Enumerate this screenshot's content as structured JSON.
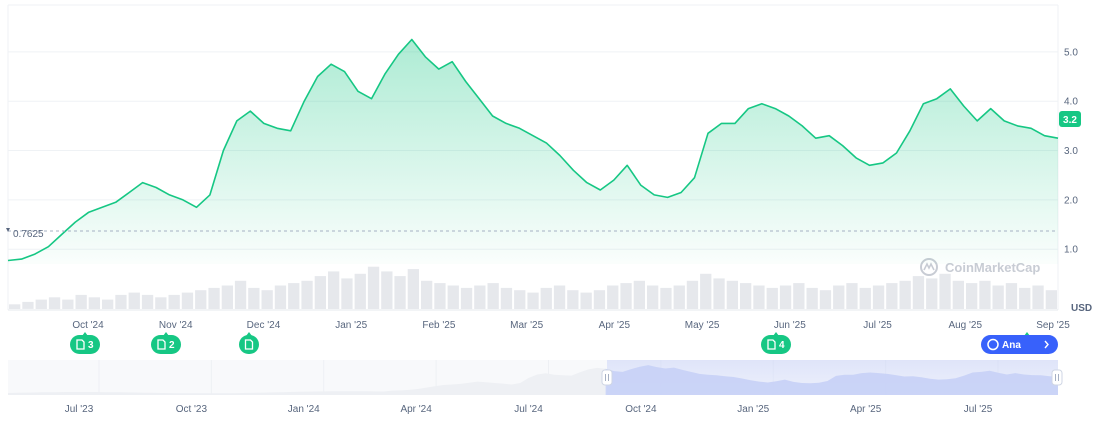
{
  "chart_data": {
    "type": "area",
    "currency_label": "USD",
    "y_ticks": [
      "1.0",
      "2.0",
      "3.0",
      "4.0",
      "5.0"
    ],
    "ylim": [
      0.7,
      5.95
    ],
    "x_ticks": [
      "Oct '24",
      "Nov '24",
      "Dec '24",
      "Jan '25",
      "Feb '25",
      "Mar '25",
      "Apr '25",
      "May '25",
      "Jun '25",
      "Jul '25",
      "Aug '25",
      "Sep '25"
    ],
    "current_value": "3.2",
    "low_value": "0.7625",
    "series": [
      {
        "values": [
          0.77,
          0.8,
          0.9,
          1.05,
          1.3,
          1.55,
          1.75,
          1.85,
          1.95,
          2.15,
          2.35,
          2.25,
          2.1,
          2.0,
          1.85,
          2.1,
          3.0,
          3.6,
          3.8,
          3.55,
          3.45,
          3.4,
          4.0,
          4.5,
          4.75,
          4.6,
          4.2,
          4.05,
          4.55,
          4.95,
          5.25,
          4.9,
          4.65,
          4.8,
          4.4,
          4.05,
          3.7,
          3.55,
          3.45,
          3.3,
          3.15,
          2.9,
          2.6,
          2.35,
          2.2,
          2.4,
          2.7,
          2.3,
          2.1,
          2.05,
          2.15,
          2.45,
          3.35,
          3.55,
          3.55,
          3.85,
          3.95,
          3.85,
          3.7,
          3.5,
          3.25,
          3.3,
          3.1,
          2.85,
          2.7,
          2.75,
          2.95,
          3.4,
          3.95,
          4.05,
          4.25,
          3.9,
          3.6,
          3.85,
          3.6,
          3.5,
          3.45,
          3.3,
          3.25
        ]
      }
    ],
    "volume_values": [
      0.1,
      0.15,
      0.2,
      0.25,
      0.2,
      0.3,
      0.25,
      0.2,
      0.3,
      0.35,
      0.3,
      0.25,
      0.3,
      0.35,
      0.4,
      0.45,
      0.5,
      0.6,
      0.45,
      0.4,
      0.5,
      0.55,
      0.6,
      0.7,
      0.8,
      0.65,
      0.75,
      0.9,
      0.8,
      0.7,
      0.85,
      0.6,
      0.55,
      0.5,
      0.45,
      0.5,
      0.55,
      0.45,
      0.4,
      0.35,
      0.45,
      0.5,
      0.4,
      0.35,
      0.4,
      0.5,
      0.55,
      0.6,
      0.5,
      0.45,
      0.5,
      0.6,
      0.75,
      0.65,
      0.6,
      0.55,
      0.5,
      0.45,
      0.5,
      0.55,
      0.45,
      0.4,
      0.5,
      0.55,
      0.45,
      0.5,
      0.55,
      0.6,
      0.7,
      0.65,
      0.75,
      0.6,
      0.55,
      0.6,
      0.5,
      0.55,
      0.45,
      0.5,
      0.4
    ]
  },
  "markers": [
    {
      "label": "3"
    },
    {
      "label": "2"
    },
    {
      "label": ""
    },
    {
      "label": "4"
    },
    {
      "label": ""
    }
  ],
  "analysis_button": {
    "label": "Ana"
  },
  "watermark": {
    "text": "CoinMarketCap"
  },
  "navigator": {
    "x_ticks": [
      "Jul '23",
      "Oct '23",
      "Jan '24",
      "Apr '24",
      "Jul '24",
      "Oct '24",
      "Jan '25",
      "Apr '25",
      "Jul '25"
    ]
  },
  "colors": {
    "line": "#16c784",
    "fill_top": "#16c784",
    "volume": "#e6e8ec",
    "navigator_fill": "#cfd6f8",
    "analysis_button": "#3861fb",
    "grid": "#eff2f5"
  }
}
